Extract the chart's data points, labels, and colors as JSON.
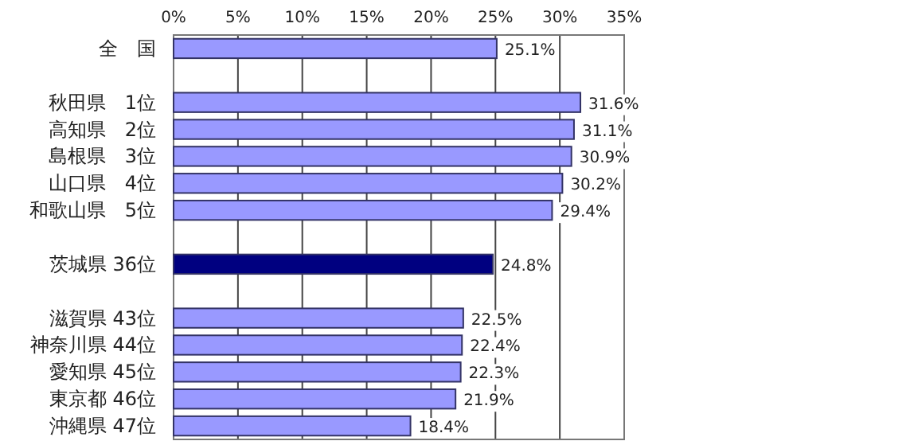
{
  "chart_data": {
    "type": "bar",
    "orientation": "horizontal",
    "categories": [
      "全　国",
      null,
      "秋田県　1位",
      "高知県　2位",
      "島根県　3位",
      "山口県　4位",
      "和歌山県　5位",
      null,
      "茨城県 36位",
      null,
      "滋賀県 43位",
      "神奈川県 44位",
      "愛知県 45位",
      "東京都 46位",
      "沖縄県 47位"
    ],
    "values": [
      25.1,
      null,
      31.6,
      31.1,
      30.9,
      30.2,
      29.4,
      null,
      24.8,
      null,
      22.5,
      22.4,
      22.3,
      21.9,
      18.4
    ],
    "value_labels": [
      "25.1%",
      null,
      "31.6%",
      "31.1%",
      "30.9%",
      "30.2%",
      "29.4%",
      null,
      "24.8%",
      null,
      "22.5%",
      "22.4%",
      "22.3%",
      "21.9%",
      "18.4%"
    ],
    "colors": [
      "#9999ff",
      null,
      "#9999ff",
      "#9999ff",
      "#9999ff",
      "#9999ff",
      "#9999ff",
      null,
      "#000080",
      null,
      "#9999ff",
      "#9999ff",
      "#9999ff",
      "#9999ff",
      "#9999ff"
    ],
    "xlim": [
      0,
      35
    ],
    "xticks": [
      {
        "value": 0,
        "label": "0%"
      },
      {
        "value": 5,
        "label": "5%"
      },
      {
        "value": 10,
        "label": "10%"
      },
      {
        "value": 15,
        "label": "15%"
      },
      {
        "value": 20,
        "label": "20%"
      },
      {
        "value": 25,
        "label": "25%"
      },
      {
        "value": 30,
        "label": "30%"
      },
      {
        "value": 35,
        "label": "35%"
      }
    ],
    "grid": "x"
  }
}
